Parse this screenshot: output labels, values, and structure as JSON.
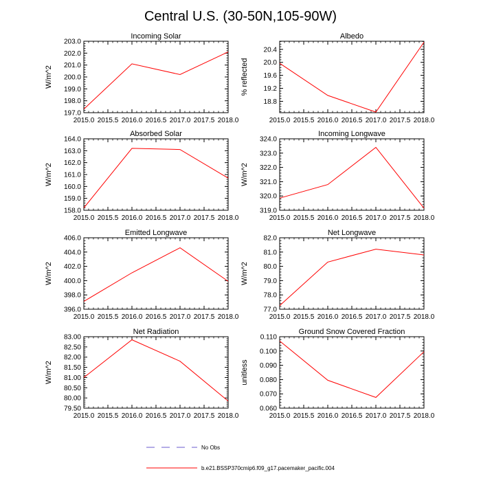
{
  "figure": {
    "title": "Central U.S. (30-50N,105-90W)"
  },
  "legend": {
    "items": [
      {
        "label": "No Obs",
        "color": "#6a5acd",
        "dash": "dashed"
      },
      {
        "label": "b.e21.BSSP370cmip6.f09_g17.pacemaker_pacific.004",
        "color": "#ff0000",
        "dash": "solid"
      }
    ]
  },
  "chart_data": [
    {
      "type": "line",
      "title": "Incoming Solar",
      "xlabel": "",
      "ylabel": "W/m^2",
      "x": [
        2015.0,
        2016.0,
        2017.0,
        2018.0
      ],
      "xlim": [
        2015.0,
        2018.0
      ],
      "xticks": [
        2015.0,
        2015.5,
        2016.0,
        2016.5,
        2017.0,
        2017.5,
        2018.0
      ],
      "xtick_decimals": 1,
      "ylim": [
        197.0,
        203.0
      ],
      "yticks": [
        197.0,
        198.0,
        199.0,
        200.0,
        201.0,
        202.0,
        203.0
      ],
      "ytick_decimals": 1,
      "series": [
        {
          "values": [
            197.3,
            201.1,
            200.2,
            202.1
          ],
          "color": "#ff0000"
        }
      ]
    },
    {
      "type": "line",
      "title": "Albedo",
      "xlabel": "",
      "ylabel": "% reflected",
      "x": [
        2015.0,
        2016.0,
        2017.0,
        2018.0
      ],
      "xlim": [
        2015.0,
        2018.0
      ],
      "xticks": [
        2015.0,
        2015.5,
        2016.0,
        2016.5,
        2017.0,
        2017.5,
        2018.0
      ],
      "xtick_decimals": 1,
      "ylim": [
        18.45,
        20.65
      ],
      "yticks": [
        18.8,
        19.2,
        19.6,
        20.0,
        20.4
      ],
      "ytick_decimals": 1,
      "series": [
        {
          "values": [
            19.97,
            18.98,
            18.47,
            20.62
          ],
          "color": "#ff0000"
        }
      ]
    },
    {
      "type": "line",
      "title": "Absorbed Solar",
      "xlabel": "",
      "ylabel": "W/m^2",
      "x": [
        2015.0,
        2016.0,
        2017.0,
        2018.0
      ],
      "xlim": [
        2015.0,
        2018.0
      ],
      "xticks": [
        2015.0,
        2015.5,
        2016.0,
        2016.5,
        2017.0,
        2017.5,
        2018.0
      ],
      "xtick_decimals": 1,
      "ylim": [
        158.0,
        164.0
      ],
      "yticks": [
        158.0,
        159.0,
        160.0,
        161.0,
        162.0,
        163.0,
        164.0
      ],
      "ytick_decimals": 1,
      "series": [
        {
          "values": [
            158.2,
            163.2,
            163.1,
            160.7
          ],
          "color": "#ff0000"
        }
      ]
    },
    {
      "type": "line",
      "title": "Incoming Longwave",
      "xlabel": "",
      "ylabel": "W/m^2",
      "x": [
        2015.0,
        2016.0,
        2017.0,
        2018.0
      ],
      "xlim": [
        2015.0,
        2018.0
      ],
      "xticks": [
        2015.0,
        2015.5,
        2016.0,
        2016.5,
        2017.0,
        2017.5,
        2018.0
      ],
      "xtick_decimals": 1,
      "ylim": [
        319.0,
        324.0
      ],
      "yticks": [
        319.0,
        320.0,
        321.0,
        322.0,
        323.0,
        324.0
      ],
      "ytick_decimals": 1,
      "series": [
        {
          "values": [
            319.85,
            320.8,
            323.4,
            319.15
          ],
          "color": "#ff0000"
        }
      ]
    },
    {
      "type": "line",
      "title": "Emitted Longwave",
      "xlabel": "",
      "ylabel": "W/m^2",
      "x": [
        2015.0,
        2016.0,
        2017.0,
        2018.0
      ],
      "xlim": [
        2015.0,
        2018.0
      ],
      "xticks": [
        2015.0,
        2015.5,
        2016.0,
        2016.5,
        2017.0,
        2017.5,
        2018.0
      ],
      "xtick_decimals": 1,
      "ylim": [
        396.0,
        406.0
      ],
      "yticks": [
        396.0,
        398.0,
        400.0,
        402.0,
        404.0,
        406.0
      ],
      "ytick_decimals": 1,
      "series": [
        {
          "values": [
            397.1,
            401.1,
            404.6,
            399.9
          ],
          "color": "#ff0000"
        }
      ]
    },
    {
      "type": "line",
      "title": "Net Longwave",
      "xlabel": "",
      "ylabel": "W/m^2",
      "x": [
        2015.0,
        2016.0,
        2017.0,
        2018.0
      ],
      "xlim": [
        2015.0,
        2018.0
      ],
      "xticks": [
        2015.0,
        2015.5,
        2016.0,
        2016.5,
        2017.0,
        2017.5,
        2018.0
      ],
      "xtick_decimals": 1,
      "ylim": [
        77.0,
        82.0
      ],
      "yticks": [
        77.0,
        78.0,
        79.0,
        80.0,
        81.0,
        82.0
      ],
      "ytick_decimals": 1,
      "series": [
        {
          "values": [
            77.25,
            80.3,
            81.2,
            80.8
          ],
          "color": "#ff0000"
        }
      ]
    },
    {
      "type": "line",
      "title": "Net Radiation",
      "xlabel": "",
      "ylabel": "W/m^2",
      "x": [
        2015.0,
        2016.0,
        2017.0,
        2018.0
      ],
      "xlim": [
        2015.0,
        2018.0
      ],
      "xticks": [
        2015.0,
        2015.5,
        2016.0,
        2016.5,
        2017.0,
        2017.5,
        2018.0
      ],
      "xtick_decimals": 1,
      "ylim": [
        79.5,
        83.0
      ],
      "yticks": [
        79.5,
        80.0,
        80.5,
        81.0,
        81.5,
        82.0,
        82.5,
        83.0
      ],
      "ytick_decimals": 2,
      "series": [
        {
          "values": [
            81.0,
            82.85,
            81.8,
            79.85
          ],
          "color": "#ff0000"
        }
      ]
    },
    {
      "type": "line",
      "title": "Ground Snow Covered Fraction",
      "xlabel": "",
      "ylabel": "unitless",
      "x": [
        2015.0,
        2016.0,
        2017.0,
        2018.0
      ],
      "xlim": [
        2015.0,
        2018.0
      ],
      "xticks": [
        2015.0,
        2015.5,
        2016.0,
        2016.5,
        2017.0,
        2017.5,
        2018.0
      ],
      "xtick_decimals": 1,
      "ylim": [
        0.06,
        0.11
      ],
      "yticks": [
        0.06,
        0.07,
        0.08,
        0.09,
        0.1,
        0.11
      ],
      "ytick_decimals": 3,
      "series": [
        {
          "values": [
            0.107,
            0.0795,
            0.0675,
            0.0995
          ],
          "color": "#ff0000"
        }
      ]
    }
  ]
}
